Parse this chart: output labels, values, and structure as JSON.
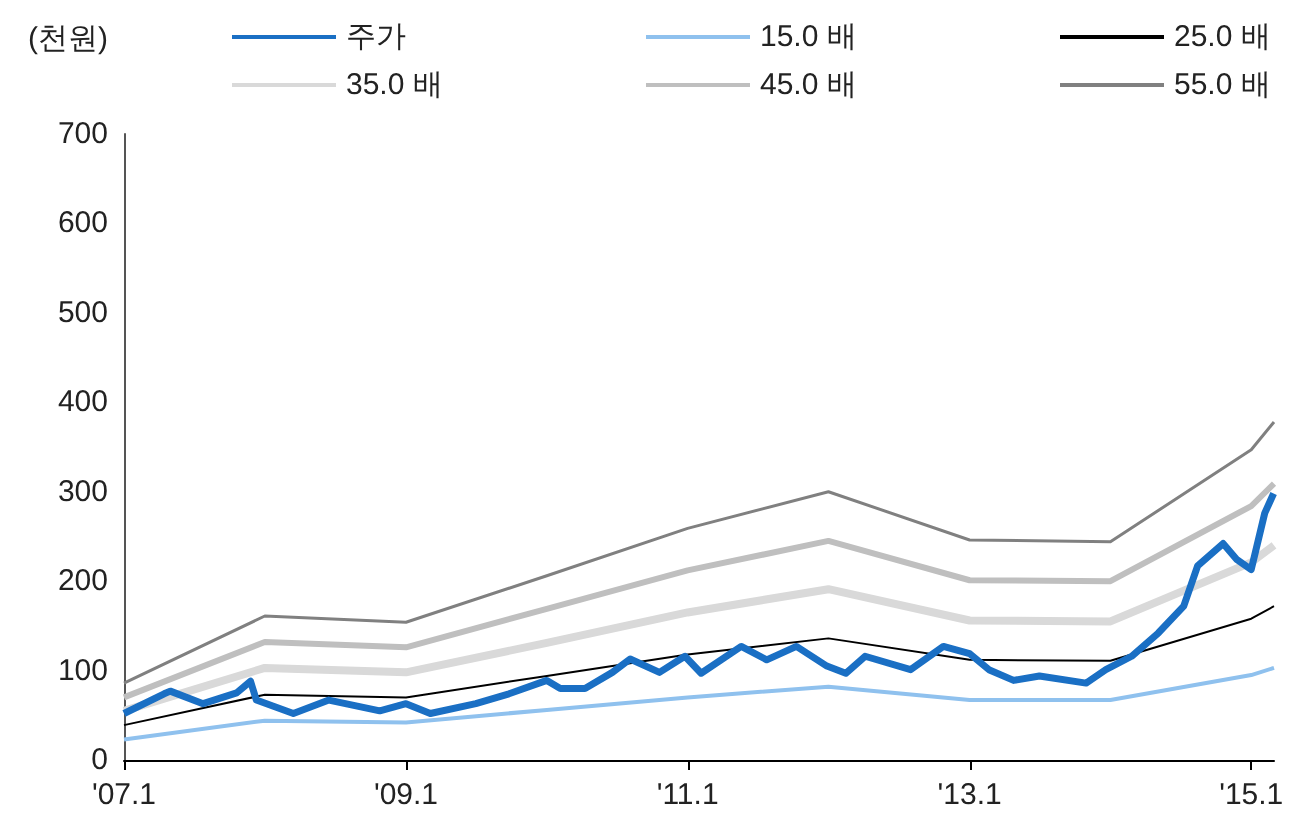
{
  "chart_data": {
    "type": "line",
    "ylabel": "(천원)",
    "x": [
      "2007-01-01",
      "2008-01-01",
      "2009-01-01",
      "2010-01-01",
      "2011-01-01",
      "2012-01-01",
      "2013-01-01",
      "2014-01-01",
      "2015-01-01",
      "2015-03-01"
    ],
    "series": [
      {
        "name": "주가",
        "color": "#1a6fc4",
        "x": [
          "2007-01-01",
          "2007-04-15",
          "2007-05-01",
          "2007-07-25",
          "2007-10-20",
          "2007-11-25",
          "2007-12-10",
          "2008-03-15",
          "2008-06-15",
          "2008-10-25",
          "2009-01-01",
          "2009-03-05",
          "2009-07-01",
          "2009-09-25",
          "2010-01-01",
          "2010-02-05",
          "2010-04-10",
          "2010-06-20",
          "2010-08-05",
          "2010-10-20",
          "2010-12-25",
          "2011-02-05",
          "2011-05-20",
          "2011-07-25",
          "2011-10-10",
          "2011-12-28",
          "2012-02-15",
          "2012-04-05",
          "2012-08-01",
          "2012-10-25",
          "2013-01-01",
          "2013-02-20",
          "2013-04-25",
          "2013-07-01",
          "2013-10-30",
          "2013-12-20",
          "2014-02-25",
          "2014-05-05",
          "2014-07-10",
          "2014-08-15",
          "2014-10-20",
          "2014-11-25",
          "2015-01-01",
          "2015-02-05",
          "2015-02-28"
        ],
        "values": [
          52,
          74,
          77,
          63,
          75,
          88,
          67,
          52,
          67,
          55,
          63,
          52,
          63,
          74,
          89,
          80,
          80,
          98,
          113,
          98,
          116,
          97,
          127,
          112,
          127,
          105,
          97,
          116,
          101,
          127,
          119,
          101,
          89,
          94,
          86,
          101,
          116,
          142,
          172,
          217,
          242,
          224,
          213,
          276,
          298
        ]
      },
      {
        "name": "15.0 배",
        "color": "#8fc1ee",
        "values": [
          23,
          44,
          42,
          56,
          70,
          82,
          67,
          67,
          95,
          103
        ]
      },
      {
        "name": "25.0 배",
        "color": "#000000",
        "values": [
          39,
          73,
          70,
          94,
          118,
          136,
          112,
          111,
          158,
          172
        ]
      },
      {
        "name": "35.0 배",
        "color": "#d9d9d9",
        "values": [
          55,
          103,
          98,
          131,
          165,
          191,
          156,
          155,
          221,
          240
        ]
      },
      {
        "name": "45.0 배",
        "color": "#bfbfbf",
        "values": [
          70,
          132,
          126,
          169,
          212,
          245,
          201,
          200,
          284,
          309
        ]
      },
      {
        "name": "55.0 배",
        "color": "#808080",
        "values": [
          86,
          161,
          154,
          206,
          259,
          300,
          246,
          244,
          347,
          378
        ]
      }
    ],
    "xlim": [
      "2007-01-01",
      "2015-03-01"
    ],
    "xticks": [
      {
        "value": "2007-01-01",
        "label": "'07.1"
      },
      {
        "value": "2009-01-01",
        "label": "'09.1"
      },
      {
        "value": "2011-01-01",
        "label": "'11.1"
      },
      {
        "value": "2013-01-01",
        "label": "'13.1"
      },
      {
        "value": "2015-01-01",
        "label": "'15.1"
      }
    ],
    "ylim": [
      0,
      700
    ],
    "yticks": [
      0,
      100,
      200,
      300,
      400,
      500,
      600,
      700
    ],
    "legend": "top",
    "marker": "none",
    "line_style": "solid"
  }
}
